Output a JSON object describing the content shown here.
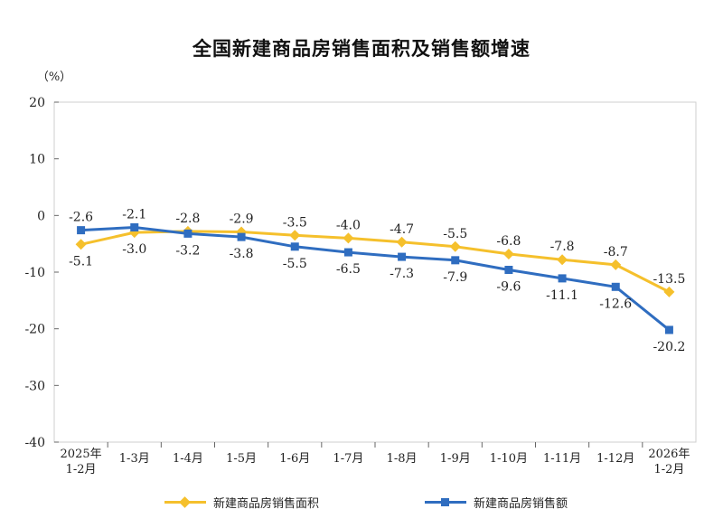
{
  "chart_data": {
    "type": "line",
    "title": "全国新建商品房销售面积及销售额增速",
    "unit_label": "（%）",
    "categories": [
      [
        "2025年",
        "1-2月"
      ],
      [
        "1-3月"
      ],
      [
        "1-4月"
      ],
      [
        "1-5月"
      ],
      [
        "1-6月"
      ],
      [
        "1-7月"
      ],
      [
        "1-8月"
      ],
      [
        "1-9月"
      ],
      [
        "1-10月"
      ],
      [
        "1-11月"
      ],
      [
        "1-12月"
      ],
      [
        "2026年",
        "1-2月"
      ]
    ],
    "ylim": [
      -40,
      20
    ],
    "yticks": [
      20,
      10,
      0,
      -10,
      -20,
      -30,
      -40
    ],
    "grid": false,
    "legend_position": "bottom",
    "series": [
      {
        "name": "新建商品房销售面积",
        "color": "#F5C02C",
        "marker": "diamond",
        "values": [
          -5.1,
          -3.0,
          -2.8,
          -2.9,
          -3.5,
          -4.0,
          -4.7,
          -5.5,
          -6.8,
          -7.8,
          -8.7,
          -13.5
        ],
        "label_sides": [
          "below",
          "below",
          "above",
          "above",
          "above",
          "above",
          "above",
          "above",
          "above",
          "above",
          "above",
          "above"
        ]
      },
      {
        "name": "新建商品房销售额",
        "color": "#2F6DC0",
        "marker": "square",
        "values": [
          -2.6,
          -2.1,
          -3.2,
          -3.8,
          -5.5,
          -6.5,
          -7.3,
          -7.9,
          -9.6,
          -11.1,
          -12.6,
          -20.2
        ],
        "label_sides": [
          "above",
          "above",
          "below",
          "below",
          "below",
          "below",
          "below",
          "below",
          "below",
          "below",
          "below",
          "below"
        ]
      }
    ]
  }
}
